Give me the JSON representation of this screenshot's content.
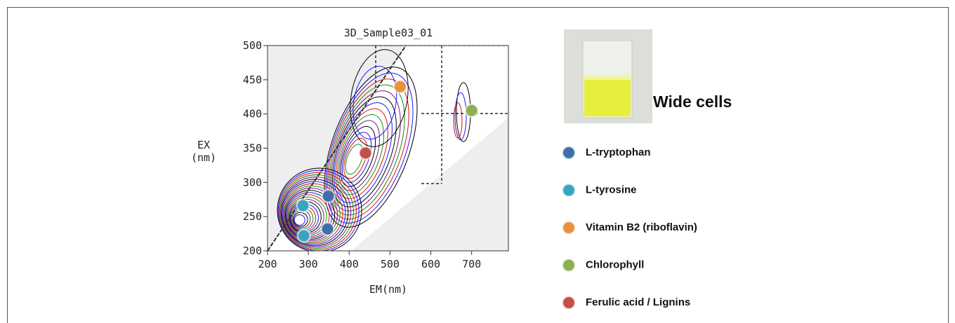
{
  "chart_data": {
    "type": "scatter",
    "title": "3D_Sample03_01",
    "x_label": "EM(nm)",
    "y_label_lines": [
      "EX",
      "(nm)"
    ],
    "xlim": [
      200,
      790
    ],
    "ylim": [
      200,
      500
    ],
    "xticks": [
      200,
      300,
      400,
      500,
      600,
      700
    ],
    "yticks": [
      200,
      250,
      300,
      350,
      400,
      450,
      500
    ],
    "series": [
      {
        "name": "L-tryptophan",
        "color": "#3f6fa8",
        "x": [
          349,
          347
        ],
        "y": [
          280,
          232
        ]
      },
      {
        "name": "L-tyrosine",
        "color": "#3aa3c2",
        "x": [
          287,
          289
        ],
        "y": [
          266,
          222
        ]
      },
      {
        "name": "Vitamin B2 (riboflavin)",
        "color": "#e8913a",
        "x": [
          525
        ],
        "y": [
          440
        ]
      },
      {
        "name": "Chlorophyll",
        "color": "#8fae4f",
        "x": [
          700
        ],
        "y": [
          405
        ]
      },
      {
        "name": "Ferulic acid / Lignins",
        "color": "#c2504a",
        "x": [
          440
        ],
        "y": [
          343
        ]
      }
    ],
    "photo_caption": "Wide cells"
  }
}
